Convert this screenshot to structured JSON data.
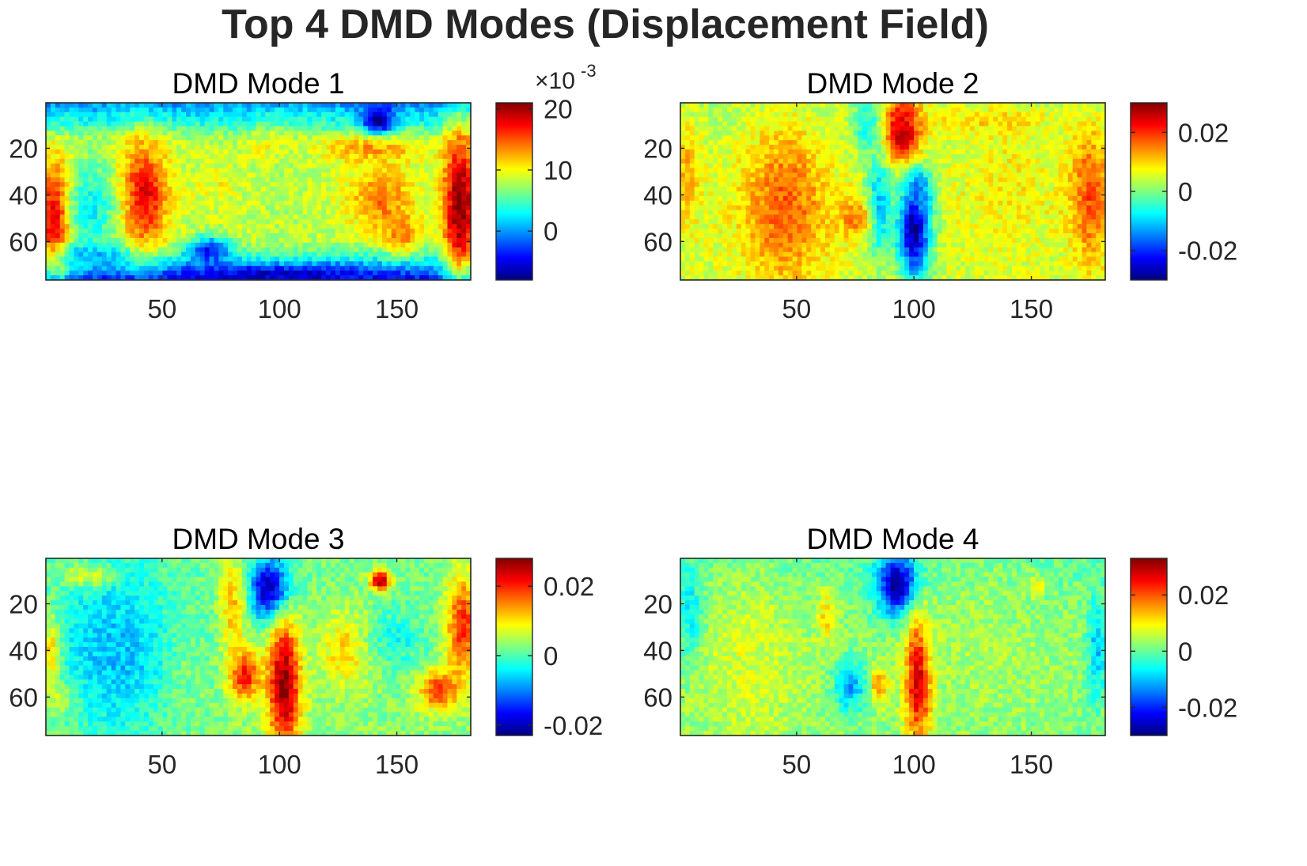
{
  "figure": {
    "title": "Top 4 DMD Modes (Displacement Field)"
  },
  "chart_data": [
    {
      "type": "heatmap",
      "title": "DMD Mode 1",
      "colormap": "jet",
      "grid": "off",
      "xlim": [
        1,
        181
      ],
      "ylim": [
        1,
        76
      ],
      "y_direction": "reversed",
      "xticks": [
        50,
        100,
        150
      ],
      "xtick_labels": [
        "50",
        "100",
        "150"
      ],
      "yticks": [
        20,
        40,
        60
      ],
      "ytick_labels": [
        "20",
        "40",
        "60"
      ],
      "colorbar": {
        "limits": [
          -0.008,
          0.021
        ],
        "ticks": [
          0,
          0.01,
          0.02
        ],
        "tick_labels": [
          "0",
          "10",
          "20"
        ],
        "exponent_label": "×10",
        "exponent": "-3"
      },
      "features": [
        {
          "x": 5,
          "y": 50,
          "sx": 5,
          "sy": 16,
          "v": 0.02
        },
        {
          "x": 177,
          "y": 45,
          "sx": 5,
          "sy": 22,
          "v": 0.021
        },
        {
          "x": 42,
          "y": 40,
          "sx": 7,
          "sy": 16,
          "v": 0.018
        },
        {
          "x": 143,
          "y": 42,
          "sx": 9,
          "sy": 10,
          "v": 0.014
        },
        {
          "x": 152,
          "y": 57,
          "sx": 5,
          "sy": 6,
          "v": 0.014
        },
        {
          "x": 138,
          "y": 20,
          "sx": 16,
          "sy": 4,
          "v": 0.013
        },
        {
          "x": 95,
          "y": 20,
          "sx": 5,
          "sy": 5,
          "v": 0.011
        },
        {
          "x": 75,
          "y": 35,
          "sx": 5,
          "sy": 6,
          "v": 0.01
        },
        {
          "x": 102,
          "y": 40,
          "sx": 12,
          "sy": 18,
          "v": 0.008
        },
        {
          "x": 142,
          "y": 8,
          "sx": 5,
          "sy": 4,
          "v": -0.008
        },
        {
          "x": 100,
          "y": 74,
          "sx": 30,
          "sy": 3,
          "v": -0.006
        },
        {
          "x": 70,
          "y": 64,
          "sx": 6,
          "sy": 4,
          "v": -0.004
        },
        {
          "x": 20,
          "y": 66,
          "sx": 10,
          "sy": 4,
          "v": 0.0
        },
        {
          "x": 20,
          "y": 45,
          "sx": 8,
          "sy": 14,
          "v": 0.003
        }
      ],
      "background": [
        {
          "y": 2,
          "v": 0.0
        },
        {
          "y": 5,
          "v": 0.002
        },
        {
          "y": 10,
          "v": 0.004
        },
        {
          "y": 16,
          "v": 0.008
        },
        {
          "y": 40,
          "v": 0.009
        },
        {
          "y": 60,
          "v": 0.008
        },
        {
          "y": 66,
          "v": 0.004
        },
        {
          "y": 72,
          "v": 0.0
        },
        {
          "y": 76,
          "v": -0.004
        }
      ]
    },
    {
      "type": "heatmap",
      "title": "DMD Mode 2",
      "colormap": "jet",
      "grid": "off",
      "xlim": [
        1,
        181
      ],
      "ylim": [
        1,
        76
      ],
      "y_direction": "reversed",
      "xticks": [
        50,
        100,
        150
      ],
      "xtick_labels": [
        "50",
        "100",
        "150"
      ],
      "yticks": [
        20,
        40,
        60
      ],
      "ytick_labels": [
        "20",
        "40",
        "60"
      ],
      "colorbar": {
        "limits": [
          -0.03,
          0.03
        ],
        "ticks": [
          -0.02,
          0,
          0.02
        ],
        "tick_labels": [
          "-0.02",
          "0",
          "0.02"
        ]
      },
      "features": [
        {
          "x": 95,
          "y": 12,
          "sx": 6,
          "sy": 10,
          "v": 0.03
        },
        {
          "x": 100,
          "y": 55,
          "sx": 5,
          "sy": 15,
          "v": -0.028
        },
        {
          "x": 103,
          "y": 38,
          "sx": 3,
          "sy": 6,
          "v": -0.015
        },
        {
          "x": 85,
          "y": 45,
          "sx": 4,
          "sy": 15,
          "v": -0.012
        },
        {
          "x": 80,
          "y": 10,
          "sx": 4,
          "sy": 8,
          "v": -0.008
        },
        {
          "x": 45,
          "y": 45,
          "sx": 12,
          "sy": 24,
          "v": 0.017
        },
        {
          "x": 75,
          "y": 50,
          "sx": 5,
          "sy": 6,
          "v": 0.015
        },
        {
          "x": 175,
          "y": 40,
          "sx": 6,
          "sy": 20,
          "v": 0.018
        },
        {
          "x": 3,
          "y": 30,
          "sx": 4,
          "sy": 14,
          "v": 0.012
        },
        {
          "x": 140,
          "y": 35,
          "sx": 12,
          "sy": 18,
          "v": 0.008
        },
        {
          "x": 130,
          "y": 8,
          "sx": 20,
          "sy": 4,
          "v": 0.01
        }
      ],
      "background": [
        {
          "y": 2,
          "v": 0.003
        },
        {
          "y": 40,
          "v": 0.006
        },
        {
          "y": 76,
          "v": 0.005
        }
      ]
    },
    {
      "type": "heatmap",
      "title": "DMD Mode 3",
      "colormap": "jet",
      "grid": "off",
      "xlim": [
        1,
        181
      ],
      "ylim": [
        1,
        76
      ],
      "y_direction": "reversed",
      "xticks": [
        50,
        100,
        150
      ],
      "xtick_labels": [
        "50",
        "100",
        "150"
      ],
      "yticks": [
        20,
        40,
        60
      ],
      "ytick_labels": [
        "20",
        "40",
        "60"
      ],
      "colorbar": {
        "limits": [
          -0.023,
          0.028
        ],
        "ticks": [
          -0.02,
          0,
          0.02
        ],
        "tick_labels": [
          "-0.02",
          "0",
          "0.02"
        ]
      },
      "features": [
        {
          "x": 96,
          "y": 14,
          "sx": 6,
          "sy": 9,
          "v": -0.023
        },
        {
          "x": 102,
          "y": 55,
          "sx": 5,
          "sy": 20,
          "v": 0.028
        },
        {
          "x": 85,
          "y": 50,
          "sx": 5,
          "sy": 8,
          "v": 0.022
        },
        {
          "x": 80,
          "y": 22,
          "sx": 4,
          "sy": 15,
          "v": 0.012
        },
        {
          "x": 143,
          "y": 10,
          "sx": 3,
          "sy": 3,
          "v": 0.026
        },
        {
          "x": 168,
          "y": 57,
          "sx": 6,
          "sy": 6,
          "v": 0.02
        },
        {
          "x": 178,
          "y": 30,
          "sx": 5,
          "sy": 16,
          "v": 0.02
        },
        {
          "x": 3,
          "y": 40,
          "sx": 3,
          "sy": 10,
          "v": 0.018
        },
        {
          "x": 8,
          "y": 60,
          "sx": 4,
          "sy": 5,
          "v": 0.013
        },
        {
          "x": 30,
          "y": 40,
          "sx": 18,
          "sy": 28,
          "v": -0.007
        },
        {
          "x": 62,
          "y": 50,
          "sx": 6,
          "sy": 18,
          "v": 0.002
        },
        {
          "x": 128,
          "y": 40,
          "sx": 8,
          "sy": 12,
          "v": 0.011
        },
        {
          "x": 150,
          "y": 35,
          "sx": 8,
          "sy": 8,
          "v": -0.003
        },
        {
          "x": 18,
          "y": 8,
          "sx": 8,
          "sy": 3,
          "v": 0.008
        }
      ],
      "background": [
        {
          "y": 2,
          "v": 0.002
        },
        {
          "y": 40,
          "v": 0.002
        },
        {
          "y": 76,
          "v": 0.003
        }
      ]
    },
    {
      "type": "heatmap",
      "title": "DMD Mode 4",
      "colormap": "jet",
      "grid": "off",
      "xlim": [
        1,
        181
      ],
      "ylim": [
        1,
        76
      ],
      "y_direction": "reversed",
      "xticks": [
        50,
        100,
        150
      ],
      "xtick_labels": [
        "50",
        "100",
        "150"
      ],
      "yticks": [
        20,
        40,
        60
      ],
      "ytick_labels": [
        "20",
        "40",
        "60"
      ],
      "colorbar": {
        "limits": [
          -0.03,
          0.033
        ],
        "ticks": [
          -0.02,
          0,
          0.02
        ],
        "tick_labels": [
          "-0.02",
          "0",
          "0.02"
        ]
      },
      "features": [
        {
          "x": 93,
          "y": 12,
          "sx": 6,
          "sy": 9,
          "v": -0.03
        },
        {
          "x": 102,
          "y": 52,
          "sx": 4,
          "sy": 18,
          "v": 0.033
        },
        {
          "x": 85,
          "y": 55,
          "sx": 3,
          "sy": 5,
          "v": 0.018
        },
        {
          "x": 73,
          "y": 55,
          "sx": 5,
          "sy": 8,
          "v": -0.012
        },
        {
          "x": 63,
          "y": 25,
          "sx": 3,
          "sy": 7,
          "v": 0.012
        },
        {
          "x": 5,
          "y": 25,
          "sx": 4,
          "sy": 14,
          "v": -0.01
        },
        {
          "x": 178,
          "y": 40,
          "sx": 3,
          "sy": 16,
          "v": -0.01
        },
        {
          "x": 152,
          "y": 12,
          "sx": 3,
          "sy": 3,
          "v": 0.01
        },
        {
          "x": 30,
          "y": 45,
          "sx": 16,
          "sy": 26,
          "v": 0.007
        },
        {
          "x": 130,
          "y": 40,
          "sx": 16,
          "sy": 22,
          "v": 0.004
        }
      ],
      "background": [
        {
          "y": 2,
          "v": 0.0
        },
        {
          "y": 40,
          "v": 0.003
        },
        {
          "y": 76,
          "v": 0.002
        }
      ]
    }
  ]
}
